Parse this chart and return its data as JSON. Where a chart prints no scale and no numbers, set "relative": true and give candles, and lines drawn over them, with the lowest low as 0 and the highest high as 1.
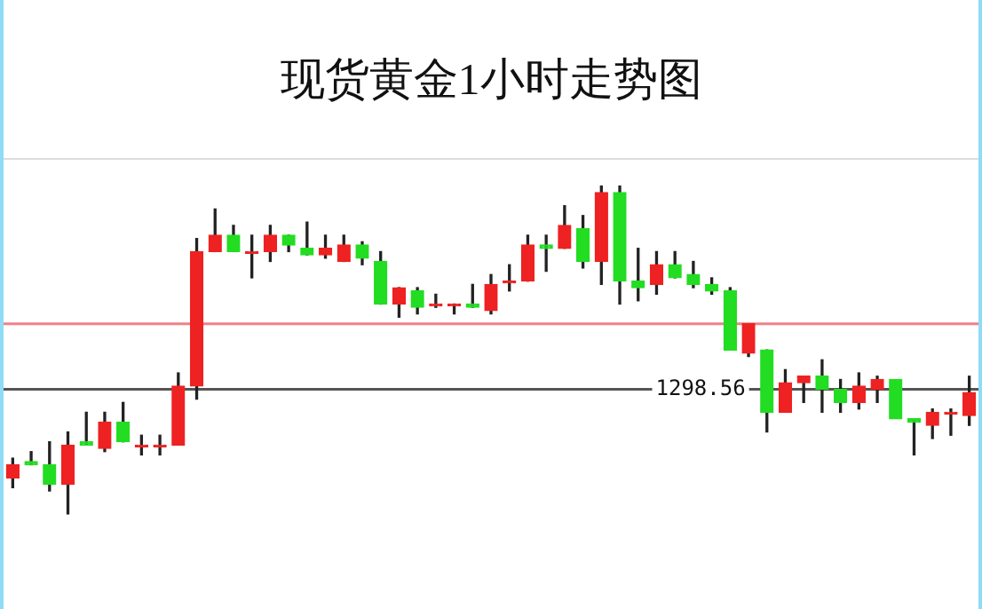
{
  "chart_data": {
    "type": "candlestick",
    "title": "现货黄金1小时走势图",
    "relative": true,
    "categories": [
      null,
      null,
      null,
      null,
      null,
      null,
      null,
      null,
      null,
      null,
      null,
      null,
      null,
      null,
      null,
      null,
      null,
      null,
      null,
      null,
      null,
      null,
      null,
      null,
      null,
      null,
      null,
      null,
      null,
      null,
      null,
      null,
      null,
      null,
      null,
      null,
      null,
      null,
      null,
      null,
      null,
      null,
      null,
      null,
      null,
      null,
      null,
      null,
      null,
      null,
      null,
      null,
      null
    ],
    "ohlc": [
      [
        0.11,
        0.17,
        0.08,
        0.15
      ],
      [
        0.16,
        0.19,
        0.15,
        0.15
      ],
      [
        0.15,
        0.22,
        0.07,
        0.09
      ],
      [
        0.09,
        0.25,
        0,
        0.21
      ],
      [
        0.22,
        0.31,
        0.21,
        0.21
      ],
      [
        0.2,
        0.31,
        0.19,
        0.28
      ],
      [
        0.28,
        0.34,
        0.22,
        0.22
      ],
      [
        0.21,
        0.24,
        0.18,
        0.21
      ],
      [
        0.21,
        0.24,
        0.18,
        0.21
      ],
      [
        0.21,
        0.43,
        0.21,
        0.39
      ],
      [
        0.39,
        0.84,
        0.35,
        0.8
      ],
      [
        0.8,
        0.93,
        0.8,
        0.85
      ],
      [
        0.85,
        0.88,
        0.8,
        0.8
      ],
      [
        0.8,
        0.85,
        0.72,
        0.8
      ],
      [
        0.8,
        0.88,
        0.77,
        0.85
      ],
      [
        0.85,
        0.85,
        0.8,
        0.82
      ],
      [
        0.81,
        0.89,
        0.79,
        0.79
      ],
      [
        0.79,
        0.85,
        0.78,
        0.81
      ],
      [
        0.77,
        0.85,
        0.77,
        0.82
      ],
      [
        0.82,
        0.83,
        0.76,
        0.78
      ],
      [
        0.77,
        0.8,
        0.64,
        0.64
      ],
      [
        0.64,
        0.69,
        0.6,
        0.69
      ],
      [
        0.68,
        0.69,
        0.61,
        0.63
      ],
      [
        0.64,
        0.67,
        0.63,
        0.64
      ],
      [
        0.64,
        0.64,
        0.61,
        0.64
      ],
      [
        0.64,
        0.7,
        0.63,
        0.63
      ],
      [
        0.62,
        0.73,
        0.61,
        0.7
      ],
      [
        0.71,
        0.76,
        0.68,
        0.71
      ],
      [
        0.71,
        0.85,
        0.71,
        0.82
      ],
      [
        0.82,
        0.85,
        0.74,
        0.81
      ],
      [
        0.81,
        0.94,
        0.81,
        0.88
      ],
      [
        0.87,
        0.91,
        0.75,
        0.77
      ],
      [
        0.77,
        1,
        0.7,
        0.98
      ],
      [
        0.98,
        1,
        0.64,
        0.71
      ],
      [
        0.71,
        0.81,
        0.65,
        0.69
      ],
      [
        0.7,
        0.8,
        0.67,
        0.76
      ],
      [
        0.76,
        0.8,
        0.72,
        0.72
      ],
      [
        0.73,
        0.77,
        0.69,
        0.7
      ],
      [
        0.7,
        0.72,
        0.67,
        0.68
      ],
      [
        0.68,
        0.69,
        0.5,
        0.5
      ],
      [
        0.49,
        0.58,
        0.48,
        0.58
      ],
      [
        0.5,
        0.5,
        0.25,
        0.31
      ],
      [
        0.31,
        0.44,
        0.31,
        0.4
      ],
      [
        0.4,
        0.42,
        0.34,
        0.42
      ],
      [
        0.42,
        0.47,
        0.31,
        0.38
      ],
      [
        0.38,
        0.41,
        0.31,
        0.34
      ],
      [
        0.34,
        0.43,
        0.32,
        0.39
      ],
      [
        0.38,
        0.42,
        0.34,
        0.41
      ],
      [
        0.41,
        0.41,
        0.29,
        0.29
      ],
      [
        0.29,
        0.29,
        0.18,
        0.28
      ],
      [
        0.27,
        0.32,
        0.23,
        0.31
      ],
      [
        0.31,
        0.32,
        0.24,
        0.31
      ],
      [
        0.3,
        0.42,
        0.27,
        0.37
      ]
    ],
    "colors": [
      "#ee2222",
      "#22dd22",
      "#22dd22",
      "#ee2222",
      "#22dd22",
      "#ee2222",
      "#22dd22",
      "#ee2222",
      "#ee2222",
      "#ee2222",
      "#ee2222",
      "#ee2222",
      "#22dd22",
      "#ee2222",
      "#ee2222",
      "#22dd22",
      "#22dd22",
      "#ee2222",
      "#ee2222",
      "#22dd22",
      "#22dd22",
      "#ee2222",
      "#22dd22",
      "#ee2222",
      "#ee2222",
      "#22dd22",
      "#ee2222",
      "#ee2222",
      "#ee2222",
      "#22dd22",
      "#ee2222",
      "#22dd22",
      "#ee2222",
      "#22dd22",
      "#22dd22",
      "#ee2222",
      "#22dd22",
      "#22dd22",
      "#22dd22",
      "#22dd22",
      "#ee2222",
      "#22dd22",
      "#ee2222",
      "#ee2222",
      "#22dd22",
      "#22dd22",
      "#ee2222",
      "#ee2222",
      "#22dd22",
      "#22dd22",
      "#ee2222",
      "#ee2222",
      "#ee2222"
    ],
    "annotations": [
      "1298.56"
    ],
    "ref_lines": [
      {
        "axis": "y",
        "value": 0.58,
        "color": "#f08088"
      },
      {
        "axis": "y",
        "value": 0.38,
        "color": "#555555"
      }
    ]
  }
}
